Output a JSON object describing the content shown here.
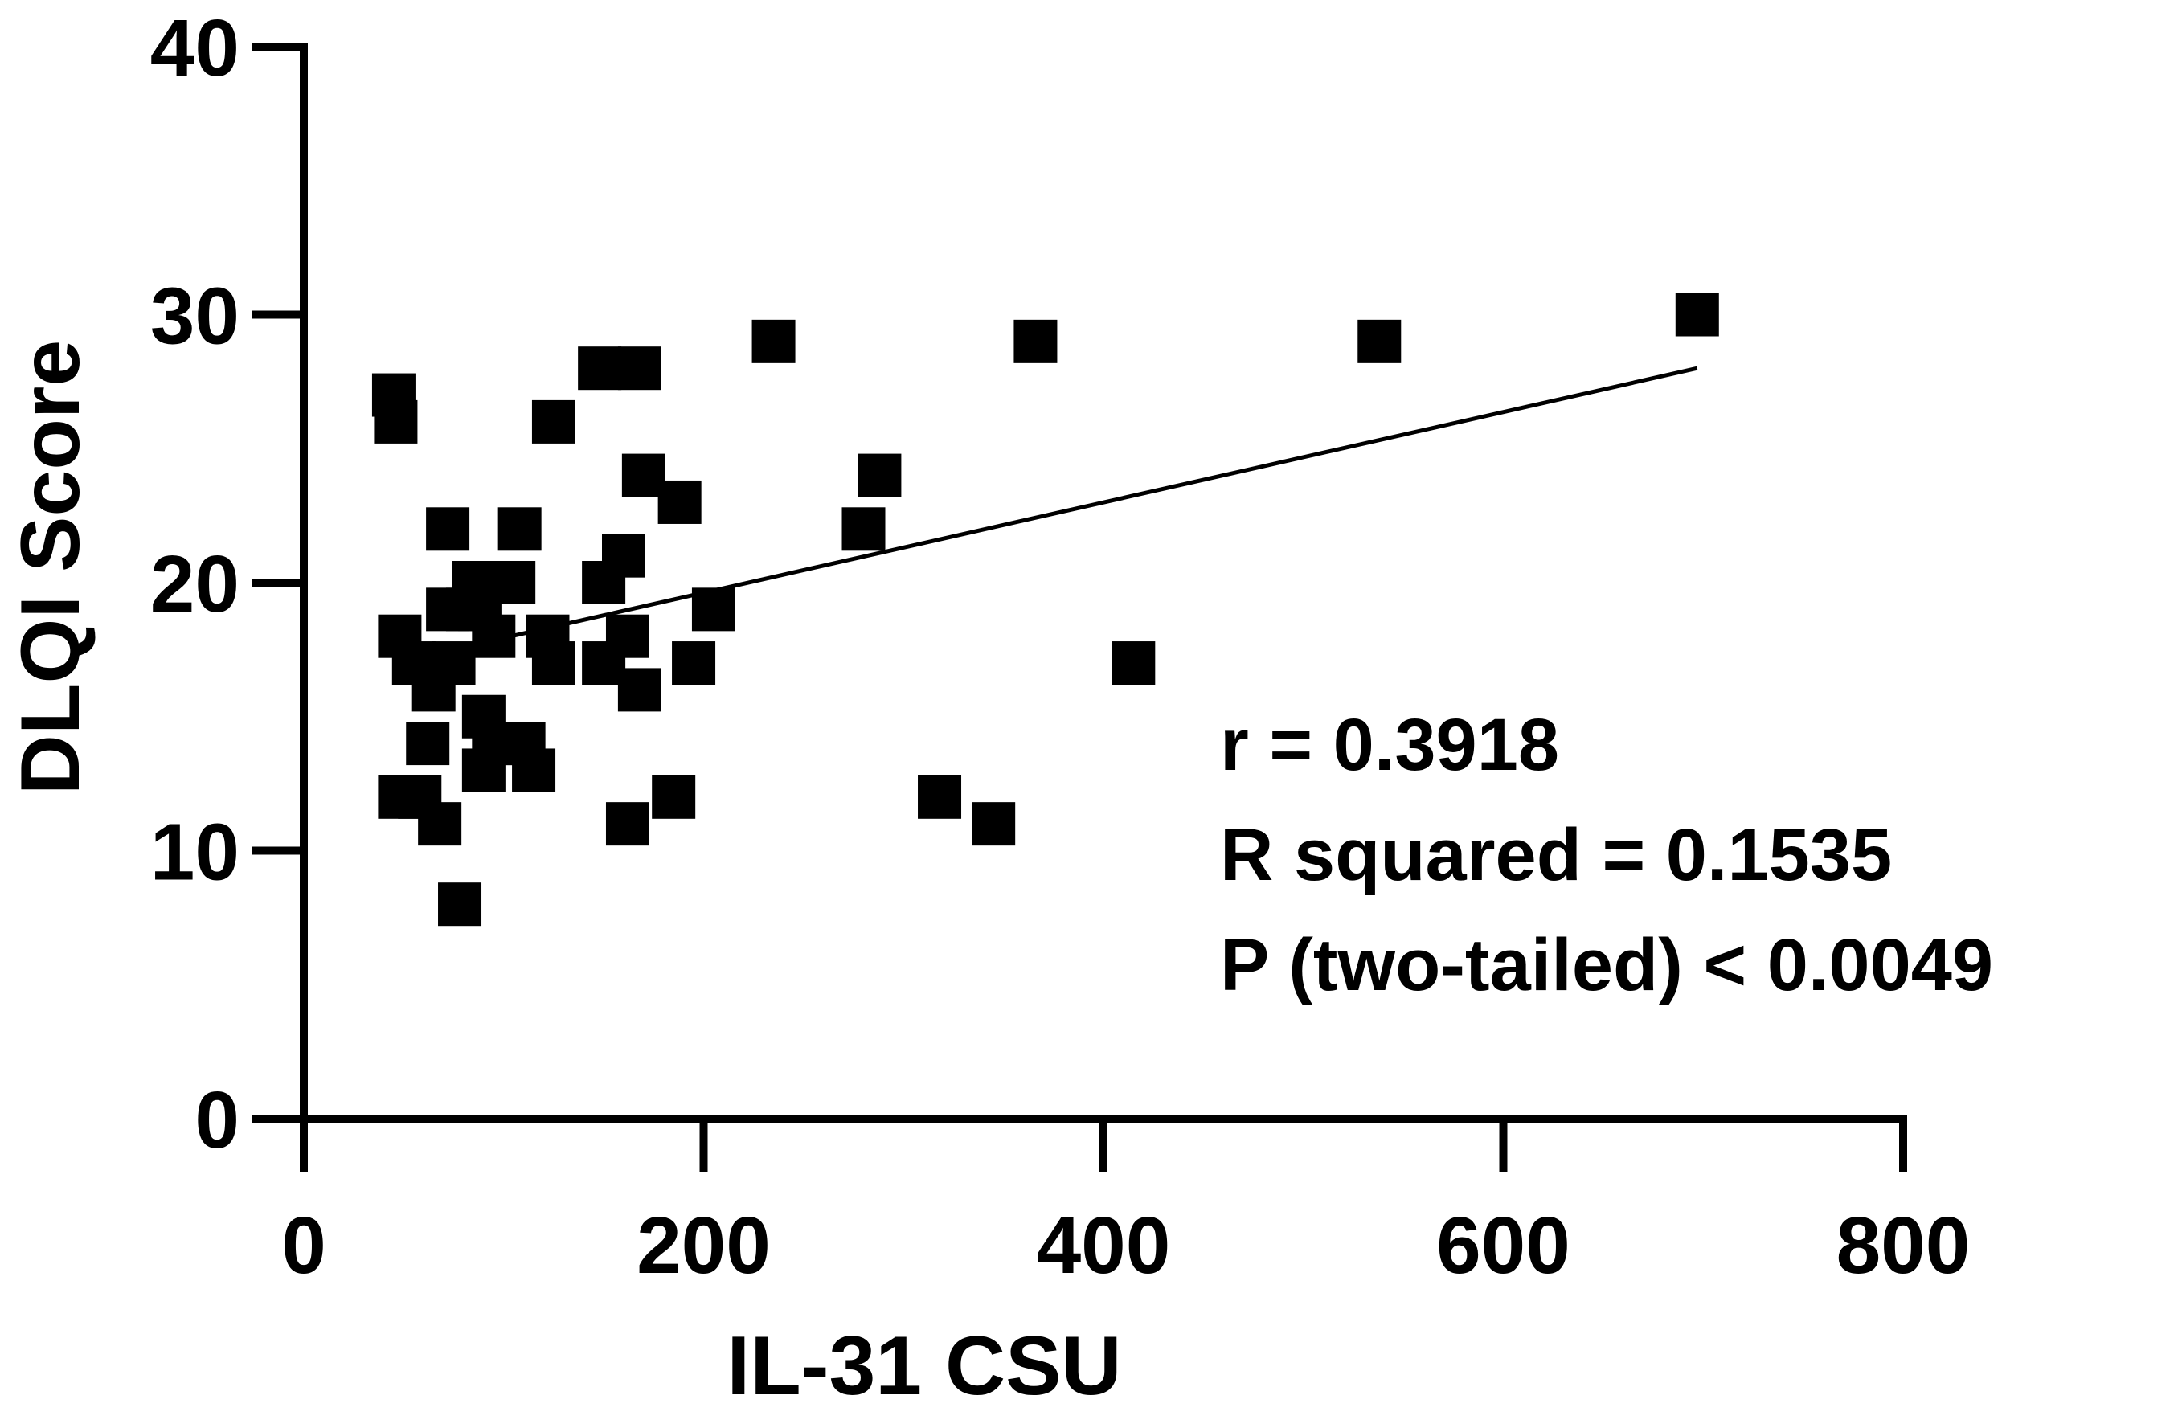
{
  "chart_data": {
    "type": "scatter",
    "title": "",
    "xlabel": "IL-31 CSU",
    "ylabel": "DLQI Score",
    "xlim": [
      0,
      800
    ],
    "ylim": [
      0,
      40
    ],
    "xticks": [
      "0",
      "200",
      "400",
      "600",
      "800"
    ],
    "yticks": [
      "0",
      "10",
      "20",
      "30",
      "40"
    ],
    "grid": false,
    "legend": "none",
    "marker": "square",
    "marker_color": "#000000",
    "points": [
      [
        45,
        27
      ],
      [
        46,
        26
      ],
      [
        48,
        18
      ],
      [
        48,
        12
      ],
      [
        55,
        17
      ],
      [
        58,
        12
      ],
      [
        62,
        14
      ],
      [
        65,
        16
      ],
      [
        68,
        11
      ],
      [
        72,
        22
      ],
      [
        72,
        19
      ],
      [
        75,
        17
      ],
      [
        78,
        8
      ],
      [
        82,
        19
      ],
      [
        85,
        20
      ],
      [
        88,
        19
      ],
      [
        90,
        15
      ],
      [
        90,
        13
      ],
      [
        95,
        14
      ],
      [
        95,
        18
      ],
      [
        105,
        20
      ],
      [
        108,
        22
      ],
      [
        110,
        14
      ],
      [
        115,
        13
      ],
      [
        122,
        18
      ],
      [
        125,
        17
      ],
      [
        125,
        26
      ],
      [
        148,
        28
      ],
      [
        150,
        20
      ],
      [
        150,
        17
      ],
      [
        160,
        21
      ],
      [
        162,
        11
      ],
      [
        162,
        18
      ],
      [
        168,
        16
      ],
      [
        168,
        28
      ],
      [
        170,
        24
      ],
      [
        185,
        12
      ],
      [
        188,
        23
      ],
      [
        195,
        17
      ],
      [
        205,
        19
      ],
      [
        235,
        29
      ],
      [
        280,
        22
      ],
      [
        288,
        24
      ],
      [
        318,
        12
      ],
      [
        345,
        11
      ],
      [
        366,
        29
      ],
      [
        415,
        17
      ],
      [
        538,
        29
      ],
      [
        697,
        30
      ]
    ],
    "fit_line": {
      "x": [
        80,
        697
      ],
      "y": [
        17.6,
        28
      ]
    },
    "annotations": [
      "r = 0.3918",
      "R squared = 0.1535",
      "P (two-tailed) < 0.0049"
    ]
  }
}
